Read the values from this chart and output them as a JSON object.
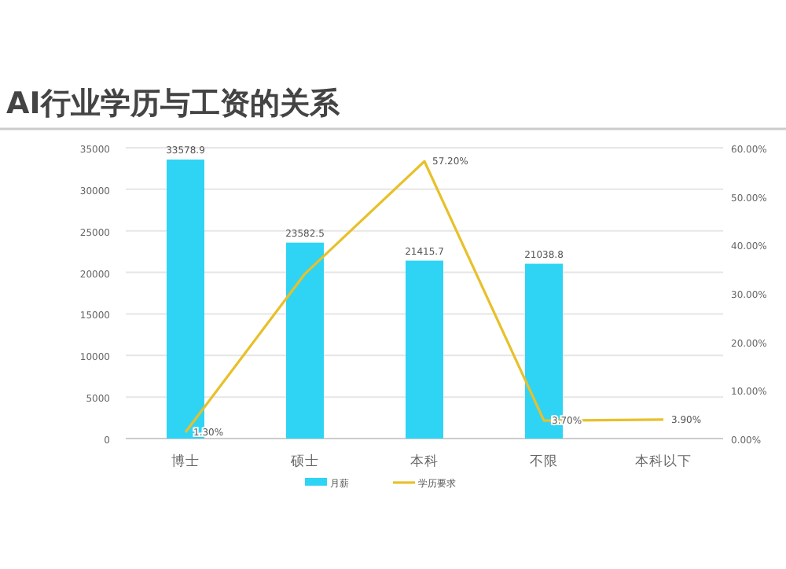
{
  "chart_data": {
    "type": "bar",
    "title": "AI行业学历与工资的关系",
    "categories": [
      "博士",
      "硕士",
      "本科",
      "不限",
      "本科以下"
    ],
    "series": [
      {
        "name": "月薪",
        "color": "#2fd4f5",
        "values": [
          33578.9,
          23582.5,
          21415.7,
          21038.8,
          null
        ],
        "value_labels": [
          "33578.9",
          "23582.5",
          "21415.7",
          "21038.8",
          null
        ]
      },
      {
        "name": "学历要求",
        "type": "line",
        "axis": "y2",
        "color": "#e8c02a",
        "values": [
          1.3,
          34,
          57.2,
          3.7,
          3.9
        ],
        "value_labels": [
          "1.30%",
          null,
          "57.20%",
          "3.70%",
          "3.90%"
        ]
      }
    ],
    "ylim": [
      0,
      35000
    ],
    "yticks": [
      0,
      5000,
      10000,
      15000,
      20000,
      25000,
      30000,
      35000
    ],
    "y2lim": [
      0,
      60
    ],
    "y2ticks": [
      {
        "value": 0,
        "label": "0.00%"
      },
      {
        "value": 10,
        "label": "10.00%"
      },
      {
        "value": 20,
        "label": "20.00%"
      },
      {
        "value": 30,
        "label": "30.00%"
      },
      {
        "value": 40,
        "label": "40.00%"
      },
      {
        "value": 50,
        "label": "50.00%"
      },
      {
        "value": 60,
        "label": "60.00%"
      }
    ],
    "grid": "y",
    "legend": "bottom"
  }
}
